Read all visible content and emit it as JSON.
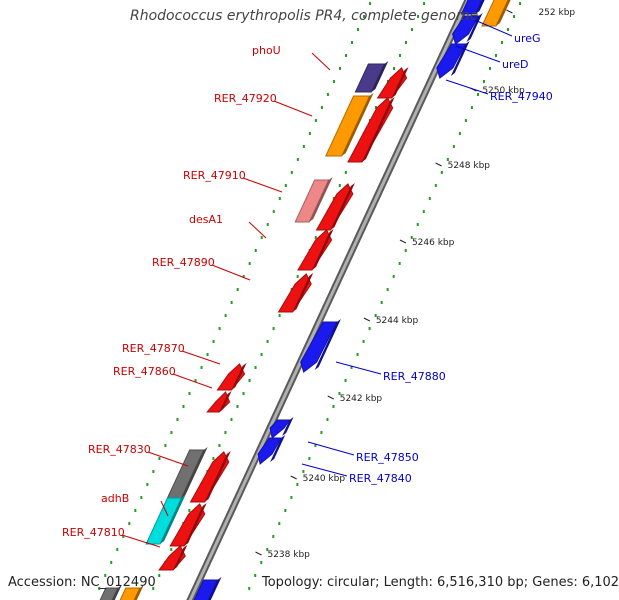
{
  "header": {
    "title": "Rhodococcus erythropolis PR4, complete genome"
  },
  "footer": {
    "accession": "Accession: NC_012490",
    "topology": "Topology: circular; Length: 6,516,310 bp; Genes: 6,102"
  },
  "colors": {
    "backbone": "#8c8c8c",
    "forward_label": "#cc0000",
    "reverse_label": "#0000cc",
    "dots": "#22a022",
    "feature_red": "#ee1111",
    "feature_blue": "#1a1aee",
    "feature_orange": "#ff9900",
    "feature_gray": "#707070",
    "feature_cyan": "#00dddd",
    "feature_pink": "#ee8888",
    "feature_purple": "#4a3a8a"
  },
  "ticks": [
    "252 kbp",
    "5250 kbp",
    "5248 kbp",
    "5246 kbp",
    "5244 kbp",
    "5242 kbp",
    "5240 kbp",
    "5238 kbp"
  ],
  "genes_forward": [
    {
      "label": "phoU",
      "color": "purple"
    },
    {
      "label": "RER_47920",
      "color": "orange"
    },
    {
      "label": "RER_47910",
      "color": "pink"
    },
    {
      "label": "desA1",
      "color": "red"
    },
    {
      "label": "RER_47890",
      "color": "red"
    },
    {
      "label": "RER_47870",
      "color": "red"
    },
    {
      "label": "RER_47860",
      "color": "red"
    },
    {
      "label": "RER_47830",
      "color": "gray"
    },
    {
      "label": "adhB",
      "color": "cyan"
    },
    {
      "label": "RER_47810",
      "color": "red"
    }
  ],
  "genes_reverse": [
    {
      "label": "ureG",
      "color": "blue"
    },
    {
      "label": "ureD",
      "color": "blue"
    },
    {
      "label": "RER_47940",
      "color": "blue"
    },
    {
      "label": "RER_47880",
      "color": "blue"
    },
    {
      "label": "RER_47850",
      "color": "blue"
    },
    {
      "label": "RER_47840",
      "color": "blue"
    }
  ]
}
